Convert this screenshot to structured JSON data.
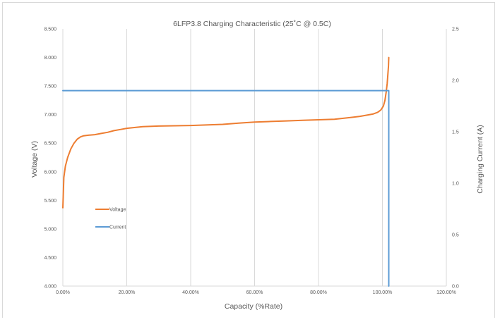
{
  "chart_data": {
    "type": "line",
    "title": "6LFP3.8 Charging Characteristic (25˚C @ 0.5C)",
    "xlabel": "Capacity (%Rate)",
    "ylabel": "Voltage (V)",
    "y2label": "Charging Current (A)",
    "xlim": [
      0,
      120
    ],
    "ylim": [
      4.0,
      8.5
    ],
    "y2lim": [
      0,
      2.5
    ],
    "x_tick_labels": [
      "0.00%",
      "20.00%",
      "40.00%",
      "60.00%",
      "80.00%",
      "100.00%",
      "120.00%"
    ],
    "y_tick_labels": [
      "4.000",
      "4.500",
      "5.000",
      "5.500",
      "6.000",
      "6.500",
      "7.000",
      "7.500",
      "8.000",
      "8.500"
    ],
    "y2_tick_labels": [
      "0.0",
      "0.5",
      "1.0",
      "1.5",
      "2.0",
      "2.5"
    ],
    "grid": "vertical",
    "legend_position": "left-inside",
    "colors": {
      "voltage": "#ed7d31",
      "current": "#5b9bd5",
      "grid": "#d9d9d9",
      "text": "#595959"
    },
    "series": [
      {
        "name": "Voltage",
        "axis": "left",
        "x": [
          0,
          0.3,
          0.8,
          1.5,
          2.5,
          3.5,
          4.5,
          5.5,
          6.5,
          8,
          10,
          12,
          14,
          16,
          18,
          20,
          25,
          30,
          40,
          50,
          55,
          60,
          65,
          70,
          75,
          80,
          85,
          90,
          93,
          95,
          97,
          98.5,
          99.5,
          100.3,
          100.8,
          101.2,
          101.5,
          101.7,
          101.9,
          102.0
        ],
        "y": [
          5.37,
          5.9,
          6.1,
          6.25,
          6.4,
          6.5,
          6.57,
          6.61,
          6.63,
          6.64,
          6.65,
          6.67,
          6.69,
          6.72,
          6.74,
          6.76,
          6.79,
          6.8,
          6.81,
          6.83,
          6.85,
          6.87,
          6.88,
          6.89,
          6.9,
          6.91,
          6.92,
          6.95,
          6.97,
          6.99,
          7.01,
          7.04,
          7.08,
          7.15,
          7.25,
          7.4,
          7.55,
          7.7,
          7.85,
          8.0
        ]
      },
      {
        "name": "Current",
        "axis": "right",
        "x": [
          0,
          102.0,
          102.0
        ],
        "y": [
          1.9,
          1.9,
          0
        ]
      }
    ]
  }
}
